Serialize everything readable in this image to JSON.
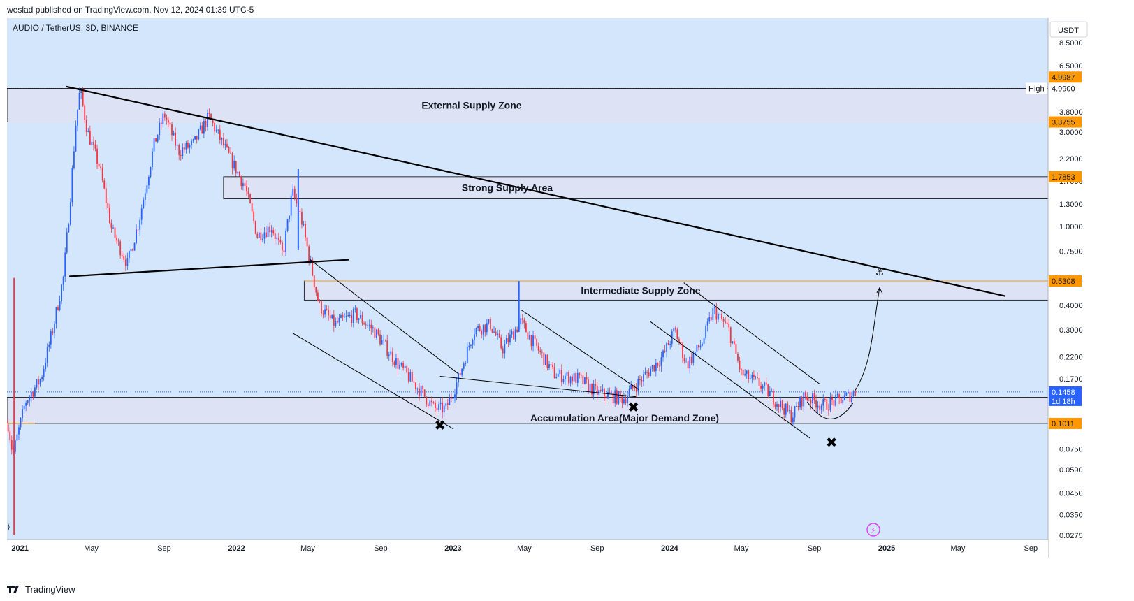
{
  "header": {
    "published_line": "weslad published on TradingView.com, Nov 12, 2024 01:39 UTC-5",
    "symbol_line": "AUDIO / TetherUS, 3D, BINANCE",
    "currency_button": "USDT"
  },
  "footer": {
    "brand": "TradingView"
  },
  "colors": {
    "background": "#d3e6fb",
    "zone_fill": "#dde2f5",
    "up_candle": "#2962ff",
    "down_candle": "#f23645",
    "trendline": "#000000",
    "price_tag_orange": "#ff9800",
    "price_tag_blue": "#2962ff"
  },
  "chart_data": {
    "type": "candlestick",
    "title": "AUDIO / TetherUS, 3D, BINANCE",
    "y_scale": "log",
    "ylim": [
      0.0275,
      8.5
    ],
    "x_range": [
      "2020-12-10",
      "2025-09-30"
    ],
    "x_ticks": [
      {
        "label": "2021",
        "date": "2021-01-01",
        "bold": true
      },
      {
        "label": "May",
        "date": "2021-05-01"
      },
      {
        "label": "Sep",
        "date": "2021-09-01"
      },
      {
        "label": "2022",
        "date": "2022-01-01",
        "bold": true
      },
      {
        "label": "May",
        "date": "2022-05-01"
      },
      {
        "label": "Sep",
        "date": "2022-09-01"
      },
      {
        "label": "2023",
        "date": "2023-01-01",
        "bold": true
      },
      {
        "label": "May",
        "date": "2023-05-01"
      },
      {
        "label": "Sep",
        "date": "2023-09-01"
      },
      {
        "label": "2024",
        "date": "2024-01-01",
        "bold": true
      },
      {
        "label": "May",
        "date": "2024-05-01"
      },
      {
        "label": "Sep",
        "date": "2024-09-01"
      },
      {
        "label": "2025",
        "date": "2025-01-01",
        "bold": true
      },
      {
        "label": "May",
        "date": "2025-05-01"
      },
      {
        "label": "Sep",
        "date": "2025-09-01"
      }
    ],
    "y_ticks": [
      {
        "label": "8.5000",
        "value": 8.5
      },
      {
        "label": "6.5000",
        "value": 6.5
      },
      {
        "label": "3.8000",
        "value": 3.8
      },
      {
        "label": "3.0000",
        "value": 3.0
      },
      {
        "label": "2.2000",
        "value": 2.2
      },
      {
        "label": "1.7000",
        "value": 1.7
      },
      {
        "label": "1.3000",
        "value": 1.3
      },
      {
        "label": "1.0000",
        "value": 1.0
      },
      {
        "label": "0.7500",
        "value": 0.75
      },
      {
        "label": "0.5300",
        "value": 0.53
      },
      {
        "label": "0.4000",
        "value": 0.4
      },
      {
        "label": "0.3000",
        "value": 0.3
      },
      {
        "label": "0.2200",
        "value": 0.22
      },
      {
        "label": "0.1700",
        "value": 0.17
      },
      {
        "label": "0.0750",
        "value": 0.075
      },
      {
        "label": "0.0590",
        "value": 0.059
      },
      {
        "label": "0.0450",
        "value": 0.045
      },
      {
        "label": "0.0350",
        "value": 0.035
      },
      {
        "label": "0.0275",
        "value": 0.0275
      }
    ],
    "price_tags": [
      {
        "label": "4.9987",
        "value": 4.9987,
        "style": "orange"
      },
      {
        "label": "4.9900",
        "value": 4.99,
        "style": "white",
        "prefix": "High"
      },
      {
        "label": "3.3755",
        "value": 3.3755,
        "style": "orange"
      },
      {
        "label": "1.7853",
        "value": 1.7853,
        "style": "orange"
      },
      {
        "label": "0.5308",
        "value": 0.5308,
        "style": "orange"
      },
      {
        "label": "0.1458",
        "value": 0.1458,
        "style": "blue",
        "sub": "1d 18h"
      },
      {
        "label": "0.1011",
        "value": 0.1011,
        "style": "orange"
      }
    ],
    "zones": [
      {
        "label": "External Supply Zone",
        "top": 4.99,
        "bottom": 3.3755,
        "x_start": "2020-12-10",
        "x_end": "2025-09-30"
      },
      {
        "label": "Strong Supply Area",
        "top": 1.7853,
        "bottom": 1.38,
        "x_start": "2021-12-10",
        "x_end": "2025-09-30"
      },
      {
        "label": "Intermediate Supply Zone",
        "top": 0.5308,
        "bottom": 0.425,
        "x_start": "2022-04-25",
        "x_end": "2025-09-30"
      },
      {
        "label": "Accumulation Area(Major Demand Zone)",
        "top": 0.137,
        "bottom": 0.1011,
        "x_start": "2020-12-10",
        "x_end": "2025-09-30"
      }
    ],
    "trendlines": [
      {
        "role": "main-descending-resistance",
        "points": [
          [
            "2021-03-20",
            5.1
          ],
          [
            "2025-07-20",
            0.445
          ]
        ],
        "width": 2.2
      },
      {
        "role": "support-2021-2022",
        "points": [
          [
            "2021-03-25",
            0.56
          ],
          [
            "2022-07-10",
            0.68
          ]
        ],
        "width": 2.2
      },
      {
        "role": "channel-2022-upper",
        "points": [
          [
            "2022-05-05",
            0.68
          ],
          [
            "2023-01-10",
            0.18
          ]
        ],
        "width": 1
      },
      {
        "role": "channel-2022-lower",
        "points": [
          [
            "2022-04-05",
            0.29
          ],
          [
            "2023-01-01",
            0.095
          ]
        ],
        "width": 1
      },
      {
        "role": "channel-2023-upper",
        "points": [
          [
            "2023-04-25",
            0.38
          ],
          [
            "2023-11-10",
            0.15
          ]
        ],
        "width": 1
      },
      {
        "role": "channel-2023-lower",
        "points": [
          [
            "2022-12-10",
            0.175
          ],
          [
            "2023-11-05",
            0.138
          ]
        ],
        "width": 1
      },
      {
        "role": "channel-2024-upper",
        "points": [
          [
            "2024-01-25",
            0.52
          ],
          [
            "2024-09-10",
            0.16
          ]
        ],
        "width": 1
      },
      {
        "role": "channel-2024-lower",
        "points": [
          [
            "2023-11-30",
            0.33
          ],
          [
            "2024-08-25",
            0.085
          ]
        ],
        "width": 1
      }
    ],
    "markers": [
      {
        "symbol": "✖",
        "date": "2022-12-10",
        "value": 0.099
      },
      {
        "symbol": "✖",
        "date": "2023-11-01",
        "value": 0.1225
      },
      {
        "symbol": "✖",
        "date": "2024-09-30",
        "value": 0.081
      }
    ],
    "projection": {
      "symbol": "⚓",
      "start": [
        "2024-11-08",
        0.147
      ],
      "end": [
        "2024-12-20",
        0.49
      ],
      "anchor_date": "2024-12-20",
      "anchor_value": 0.59
    },
    "path_keypoints": [
      [
        "2020-12-12",
        0.1
      ],
      [
        "2020-12-20",
        0.07
      ],
      [
        "2021-01-10",
        0.13
      ],
      [
        "2021-02-05",
        0.17
      ],
      [
        "2021-02-25",
        0.3
      ],
      [
        "2021-03-15",
        0.55
      ],
      [
        "2021-03-25",
        1.2
      ],
      [
        "2021-04-05",
        3.3
      ],
      [
        "2021-04-12",
        4.9
      ],
      [
        "2021-04-25",
        3.0
      ],
      [
        "2021-05-15",
        2.0
      ],
      [
        "2021-06-05",
        0.95
      ],
      [
        "2021-07-01",
        0.65
      ],
      [
        "2021-07-20",
        1.05
      ],
      [
        "2021-08-15",
        2.6
      ],
      [
        "2021-09-01",
        3.7
      ],
      [
        "2021-09-25",
        2.4
      ],
      [
        "2021-10-20",
        2.6
      ],
      [
        "2021-11-15",
        3.6
      ],
      [
        "2021-12-15",
        2.4
      ],
      [
        "2022-01-15",
        1.6
      ],
      [
        "2022-02-05",
        0.9
      ],
      [
        "2022-03-01",
        1.0
      ],
      [
        "2022-03-20",
        0.72
      ],
      [
        "2022-04-05",
        1.5
      ],
      [
        "2022-04-20",
        1.1
      ],
      [
        "2022-05-10",
        0.56
      ],
      [
        "2022-05-20",
        0.4
      ],
      [
        "2022-06-15",
        0.32
      ],
      [
        "2022-07-20",
        0.36
      ],
      [
        "2022-08-20",
        0.3
      ],
      [
        "2022-10-01",
        0.2
      ],
      [
        "2022-11-05",
        0.15
      ],
      [
        "2022-12-01",
        0.12
      ],
      [
        "2022-12-20",
        0.12
      ],
      [
        "2023-01-10",
        0.17
      ],
      [
        "2023-02-05",
        0.3
      ],
      [
        "2023-03-05",
        0.32
      ],
      [
        "2023-03-25",
        0.24
      ],
      [
        "2023-04-25",
        0.33
      ],
      [
        "2023-05-20",
        0.25
      ],
      [
        "2023-06-20",
        0.18
      ],
      [
        "2023-08-01",
        0.17
      ],
      [
        "2023-09-01",
        0.145
      ],
      [
        "2023-10-15",
        0.135
      ],
      [
        "2023-11-15",
        0.17
      ],
      [
        "2023-12-20",
        0.22
      ],
      [
        "2024-01-10",
        0.3
      ],
      [
        "2024-01-30",
        0.2
      ],
      [
        "2024-02-25",
        0.26
      ],
      [
        "2024-03-15",
        0.38
      ],
      [
        "2024-04-10",
        0.3
      ],
      [
        "2024-05-01",
        0.18
      ],
      [
        "2024-06-01",
        0.16
      ],
      [
        "2024-07-01",
        0.13
      ],
      [
        "2024-07-25",
        0.11
      ],
      [
        "2024-08-15",
        0.14
      ],
      [
        "2024-09-15",
        0.125
      ],
      [
        "2024-10-20",
        0.135
      ],
      [
        "2024-11-10",
        0.1458
      ]
    ],
    "spikes": [
      [
        "2020-12-22",
        0.0275,
        0.55,
        0.12,
        0.09
      ],
      [
        "2022-04-15",
        0.76,
        1.95,
        1.2,
        1.45
      ],
      [
        "2023-04-22",
        0.3,
        0.53,
        0.31,
        0.37
      ]
    ]
  }
}
